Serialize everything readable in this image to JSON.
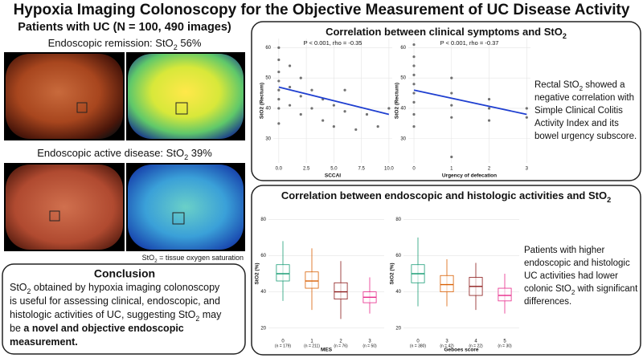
{
  "title": "Hypoxia Imaging Colonoscopy for the Objective Measurement of UC Disease Activity",
  "left": {
    "heading": "Patients with UC (N = 100, 490 images)",
    "remission": [
      "Endoscopic remission: StO",
      {
        "sub": "2"
      },
      " 56%"
    ],
    "active": [
      "Endoscopic active disease: StO",
      {
        "sub": "2"
      },
      " 39%"
    ],
    "note": [
      "StO",
      {
        "sub": "2"
      },
      " = tissue oxygen saturation"
    ]
  },
  "conclusion": {
    "heading": "Conclusion",
    "lines": [
      [
        "StO",
        {
          "sub": "2"
        },
        " obtained by hypoxia imaging colonoscopy"
      ],
      [
        "is useful for assessing clinical, endoscopic, and"
      ],
      [
        "histologic activities of UC, suggesting StO",
        {
          "sub": "2"
        },
        " may"
      ],
      [
        "be ",
        {
          "b": "a novel and objective endoscopic"
        }
      ],
      [
        {
          "b": "measurement."
        }
      ]
    ]
  },
  "clinical": {
    "title": [
      "Correlation between clinical symptoms and StO",
      {
        "sub": "2"
      }
    ],
    "text_lines": [
      [
        "Rectal StO",
        {
          "sub": "2"
        },
        " showed a"
      ],
      [
        "negative correlation with"
      ],
      [
        "Simple Clinical Colitis"
      ],
      [
        "Activity Index and its"
      ],
      [
        "bowel urgency subscore."
      ]
    ],
    "plots": [
      {
        "type": "scatter",
        "annotation": "P < 0.001, rho = -0.35",
        "xlabel": "SCCAI",
        "ylabel": "StO2 (Rectum)",
        "xlim": [
          -0.5,
          10.3
        ],
        "ylim": [
          22,
          63
        ],
        "xticks": [
          {
            "value": 0,
            "label": "0.0"
          },
          {
            "value": 2.5,
            "label": "2.5"
          },
          {
            "value": 5,
            "label": "5.0"
          },
          {
            "value": 7.5,
            "label": "7.5"
          },
          {
            "value": 10,
            "label": "10.0"
          }
        ],
        "yticks": [
          30,
          40,
          50,
          60
        ],
        "x": [
          0,
          0,
          0,
          0,
          0,
          0,
          0,
          0,
          1,
          1,
          1,
          2,
          2,
          2,
          3,
          3,
          4,
          4,
          5,
          5,
          6,
          6,
          7,
          8,
          9,
          10
        ],
        "y": [
          60,
          56,
          52,
          49,
          46,
          43,
          40,
          35,
          54,
          47,
          41,
          50,
          44,
          38,
          46,
          40,
          43,
          36,
          41,
          34,
          39,
          46,
          33,
          38,
          34,
          40
        ],
        "fit": {
          "x": [
            0,
            10
          ],
          "y": [
            47,
            38
          ]
        }
      },
      {
        "type": "scatter",
        "annotation": "P < 0.001, rho = -0.37",
        "xlabel": "Urgency of defecation",
        "ylabel": "StO2 (Rectum)",
        "xlim": [
          -0.15,
          3.1
        ],
        "ylim": [
          22,
          63
        ],
        "xticks": [
          0,
          1,
          2,
          3
        ],
        "yticks": [
          30,
          40,
          50,
          60
        ],
        "x": [
          0,
          0,
          0,
          0,
          0,
          0,
          0,
          0,
          0,
          1,
          1,
          1,
          1,
          1,
          2,
          2,
          2,
          3,
          3
        ],
        "y": [
          61,
          57,
          54,
          51,
          48,
          45,
          42,
          38,
          34,
          50,
          45,
          41,
          37,
          24,
          43,
          40,
          36,
          40,
          37
        ],
        "fit": {
          "x": [
            0,
            3
          ],
          "y": [
            46,
            38
          ]
        }
      }
    ]
  },
  "histologic": {
    "title": [
      "Correlation between endoscopic and histologic activities and StO",
      {
        "sub": "2"
      }
    ],
    "text_lines": [
      [
        "Patients with higher"
      ],
      [
        "endoscopic and histologic"
      ],
      [
        "UC activities had lower"
      ],
      [
        "colonic StO",
        {
          "sub": "2"
        },
        " with significant"
      ],
      [
        "differences."
      ]
    ],
    "plots": [
      {
        "type": "box",
        "xlabel": "MES",
        "ylabel": "StO2 (%)",
        "ylim": [
          15,
          85
        ],
        "yticks": [
          20,
          40,
          60,
          80
        ],
        "categories": [
          "0",
          "1",
          "2",
          "3"
        ],
        "counts": [
          "(n = 179)",
          "(n = 211)",
          "(n = 76)",
          "(n = 50)"
        ],
        "colors": [
          "#1b9e77",
          "#d95f02",
          "#8b1a1a",
          "#e7298a"
        ],
        "low": [
          35,
          30,
          25,
          28
        ],
        "q1": [
          46,
          42,
          36,
          34
        ],
        "median": [
          50,
          46,
          40,
          37
        ],
        "q3": [
          55,
          51,
          45,
          40
        ],
        "high": [
          68,
          64,
          57,
          48
        ]
      },
      {
        "type": "box",
        "xlabel": "Geboes score",
        "ylabel": "StO2 (%)",
        "ylim": [
          15,
          85
        ],
        "yticks": [
          20,
          40,
          60,
          80
        ],
        "categories": [
          "0",
          "3",
          "4",
          "5"
        ],
        "counts": [
          "(n = 380)",
          "(n = 42)",
          "(n = 22)",
          "(n = 30)"
        ],
        "colors": [
          "#1b9e77",
          "#d95f02",
          "#8b1a1a",
          "#e7298a"
        ],
        "low": [
          32,
          32,
          30,
          28
        ],
        "q1": [
          45,
          40,
          38,
          35
        ],
        "median": [
          50,
          44,
          43,
          38
        ],
        "q3": [
          55,
          49,
          48,
          42
        ],
        "high": [
          70,
          58,
          56,
          50
        ]
      }
    ]
  }
}
